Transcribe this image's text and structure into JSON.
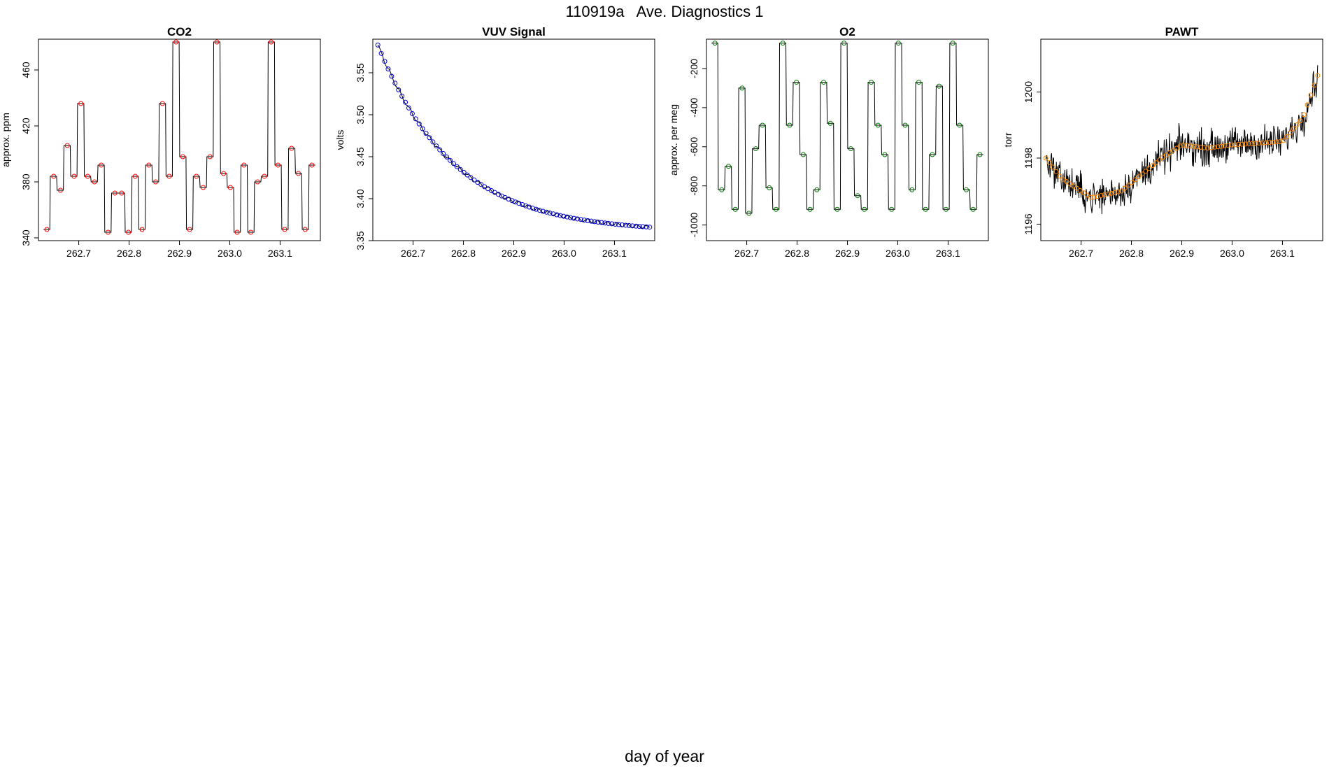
{
  "page": {
    "title": "110919a   Ave. Diagnostics 1",
    "xlabel": "day of year"
  },
  "chart_data": [
    {
      "id": "co2",
      "type": "line",
      "title": "CO2",
      "ylabel": "approx. ppm",
      "xlabel": "",
      "xlim": [
        262.62,
        263.18
      ],
      "ylim": [
        338,
        482
      ],
      "yticks": [
        340,
        380,
        420,
        460
      ],
      "ytick_labels": [
        "340",
        "380",
        "420",
        "460"
      ],
      "xticks": [
        262.7,
        262.8,
        262.9,
        263.0,
        263.1
      ],
      "xtick_labels": [
        "262.7",
        "262.8",
        "262.9",
        "263.0",
        "263.1"
      ],
      "marker_color": "#ff0000",
      "pattern": "cycle",
      "base": 0,
      "amp": 0,
      "noise": 0,
      "levels": [
        346,
        384,
        374,
        406,
        384,
        436,
        384,
        380,
        392,
        344,
        372,
        372,
        344,
        384,
        346,
        392,
        380,
        436,
        384,
        480,
        398,
        346,
        384,
        376,
        398,
        480,
        386,
        376,
        344,
        392,
        344,
        380,
        384,
        480,
        392,
        346,
        404,
        386,
        346,
        392
      ]
    },
    {
      "id": "vuv",
      "type": "line",
      "title": "VUV Signal",
      "ylabel": "volts",
      "xlabel": "",
      "xlim": [
        262.62,
        263.18
      ],
      "ylim": [
        3.35,
        3.59
      ],
      "yticks": [
        3.35,
        3.4,
        3.45,
        3.5,
        3.55
      ],
      "ytick_labels": [
        "3.35",
        "3.40",
        "3.45",
        "3.50",
        "3.55"
      ],
      "xticks": [
        262.7,
        262.8,
        262.9,
        263.0,
        263.1
      ],
      "xtick_labels": [
        "262.7",
        "262.8",
        "262.9",
        "263.0",
        "263.1"
      ],
      "marker_color": "#0000cc",
      "pattern": "decay",
      "start": 3.583,
      "end": 3.36,
      "tau": 0.15,
      "noise": 0.002
    },
    {
      "id": "o2",
      "type": "line",
      "title": "O2",
      "ylabel": "approx. per meg",
      "xlabel": "",
      "xlim": [
        262.62,
        263.18
      ],
      "ylim": [
        -1080,
        -50
      ],
      "yticks": [
        -1000,
        -800,
        -600,
        -400,
        -200
      ],
      "ytick_labels": [
        "-1000",
        "-800",
        "-600",
        "-400",
        "-200"
      ],
      "xticks": [
        262.7,
        262.8,
        262.9,
        263.0,
        263.1
      ],
      "xtick_labels": [
        "262.7",
        "262.8",
        "262.9",
        "263.0",
        "263.1"
      ],
      "marker_color": "#007700",
      "pattern": "cycle",
      "base": 0,
      "amp": 0,
      "noise": 0,
      "levels": [
        -70,
        -820,
        -700,
        -920,
        -300,
        -940,
        -610,
        -490,
        -810,
        -920,
        -70,
        -490,
        -270,
        -640,
        -920,
        -820,
        -270,
        -480,
        -920,
        -70,
        -610,
        -850,
        -920,
        -270,
        -490,
        -640,
        -920,
        -70,
        -490,
        -820,
        -270,
        -920,
        -640,
        -290,
        -920,
        -70,
        -490,
        -820,
        -920,
        -640
      ]
    },
    {
      "id": "pawt",
      "type": "line",
      "title": "PAWT",
      "ylabel": "torr",
      "xlabel": "",
      "xlim": [
        262.62,
        263.18
      ],
      "ylim": [
        1195.5,
        1201.6
      ],
      "yticks": [
        1196,
        1198,
        1200
      ],
      "ytick_labels": [
        "1196",
        "1198",
        "1200"
      ],
      "xticks": [
        262.7,
        262.8,
        262.9,
        263.0,
        263.1
      ],
      "xtick_labels": [
        "262.7",
        "262.8",
        "262.9",
        "263.0",
        "263.1"
      ],
      "marker_color": "#ff8800",
      "pattern": "trend",
      "knots": [
        [
          262.63,
          1198
        ],
        [
          262.66,
          1197.4
        ],
        [
          262.72,
          1196.8
        ],
        [
          262.78,
          1197
        ],
        [
          262.86,
          1198
        ],
        [
          262.9,
          1198.4
        ],
        [
          262.95,
          1198.3
        ],
        [
          263.0,
          1198.4
        ],
        [
          263.1,
          1198.5
        ],
        [
          263.14,
          1199.2
        ],
        [
          263.17,
          1200.5
        ]
      ],
      "noise": 0.45,
      "spikes": 0.6
    }
  ]
}
